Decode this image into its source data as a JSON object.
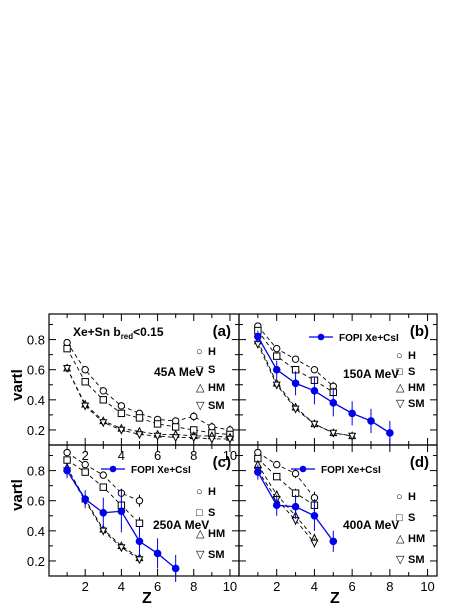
{
  "figure": {
    "ylabel": "vartl",
    "xlabel": "Z"
  },
  "chart_data": [
    {
      "type": "line",
      "panel_label": "(a)",
      "energy_label": "45A MeV",
      "system_label": "Xe+Sn b",
      "system_sub": "red",
      "system_cut": "<0.15",
      "xlim": [
        0,
        10.5
      ],
      "ylim": [
        0.1,
        0.97
      ],
      "x_ticks": [
        "2",
        "4",
        "6",
        "8",
        "10"
      ],
      "y_ticks": [
        "0.2",
        "0.4",
        "0.6",
        "0.8"
      ],
      "legend": [
        {
          "glyph": "○",
          "text": "H"
        },
        {
          "glyph": "□",
          "text": "S"
        },
        {
          "glyph": "△",
          "text": "HM"
        },
        {
          "glyph": "▽",
          "text": "SM"
        }
      ],
      "series": [
        {
          "marker": "circle",
          "style": "dashed",
          "color": "#000000",
          "x": [
            1,
            2,
            3,
            4,
            5,
            6,
            7,
            8,
            9,
            10
          ],
          "y": [
            0.78,
            0.6,
            0.46,
            0.36,
            0.31,
            0.27,
            0.26,
            0.29,
            0.22,
            0.2
          ],
          "err": [
            0.01,
            0.01,
            0.01,
            0.015,
            0.015,
            0.02,
            0.02,
            0.03,
            0.03,
            0.03
          ]
        },
        {
          "marker": "square",
          "style": "dashed",
          "color": "#000000",
          "x": [
            1,
            2,
            3,
            4,
            5,
            6,
            7,
            8,
            9,
            10
          ],
          "y": [
            0.74,
            0.52,
            0.4,
            0.31,
            0.28,
            0.24,
            0.22,
            0.2,
            0.18,
            0.17
          ],
          "err": [
            0.01,
            0.01,
            0.01,
            0.015,
            0.015,
            0.02,
            0.02,
            0.02,
            0.02,
            0.02
          ]
        },
        {
          "marker": "triangle-up",
          "style": "dashed",
          "color": "#000000",
          "x": [
            1,
            2,
            3,
            4,
            5,
            6,
            7,
            8,
            9,
            10
          ],
          "y": [
            0.61,
            0.37,
            0.26,
            0.21,
            0.19,
            0.17,
            0.17,
            0.16,
            0.16,
            0.15
          ],
          "err": [
            0.01,
            0.01,
            0.01,
            0.01,
            0.01,
            0.01,
            0.01,
            0.01,
            0.01,
            0.01
          ]
        },
        {
          "marker": "triangle-down",
          "style": "dashed",
          "color": "#000000",
          "x": [
            1,
            2,
            3,
            4,
            5,
            6,
            7,
            8,
            9,
            10
          ],
          "y": [
            0.61,
            0.36,
            0.25,
            0.2,
            0.17,
            0.16,
            0.15,
            0.15,
            0.14,
            0.14
          ],
          "err": [
            0.01,
            0.01,
            0.01,
            0.01,
            0.01,
            0.01,
            0.01,
            0.01,
            0.01,
            0.01
          ]
        }
      ]
    },
    {
      "type": "line",
      "panel_label": "(b)",
      "energy_label": "150A MeV",
      "fopi_label": "FOPI Xe+CsI",
      "xlim": [
        0,
        10.5
      ],
      "ylim": [
        0.1,
        0.97
      ],
      "x_ticks": [],
      "y_ticks": [],
      "legend": [
        {
          "glyph": "○",
          "text": "H"
        },
        {
          "glyph": "□",
          "text": "S"
        },
        {
          "glyph": "△",
          "text": "HM"
        },
        {
          "glyph": "▽",
          "text": "SM"
        }
      ],
      "series": [
        {
          "marker": "circle",
          "style": "dashed",
          "color": "#000000",
          "x": [
            1,
            2,
            3,
            4,
            5
          ],
          "y": [
            0.89,
            0.74,
            0.67,
            0.6,
            0.49
          ],
          "err": [
            0.01,
            0.01,
            0.015,
            0.02,
            0.03
          ]
        },
        {
          "marker": "square",
          "style": "dashed",
          "color": "#000000",
          "x": [
            1,
            2,
            3,
            4,
            5
          ],
          "y": [
            0.86,
            0.69,
            0.6,
            0.53,
            0.45
          ],
          "err": [
            0.01,
            0.01,
            0.015,
            0.02,
            0.03
          ]
        },
        {
          "marker": "triangle-up",
          "style": "dashed",
          "color": "#000000",
          "x": [
            1,
            2,
            3,
            4,
            5,
            6
          ],
          "y": [
            0.79,
            0.51,
            0.35,
            0.24,
            0.18,
            0.16
          ],
          "err": [
            0.01,
            0.01,
            0.01,
            0.01,
            0.01,
            0.01
          ]
        },
        {
          "marker": "triangle-down",
          "style": "dashed",
          "color": "#000000",
          "x": [
            1,
            2,
            3,
            4,
            5,
            6
          ],
          "y": [
            0.77,
            0.5,
            0.34,
            0.24,
            0.18,
            0.16
          ],
          "err": [
            0.01,
            0.01,
            0.01,
            0.01,
            0.01,
            0.01
          ]
        },
        {
          "marker": "filled-circle",
          "style": "solid",
          "color": "#0000ee",
          "x": [
            1,
            2,
            3,
            4,
            5,
            6,
            7,
            8
          ],
          "y": [
            0.82,
            0.6,
            0.51,
            0.46,
            0.38,
            0.31,
            0.26,
            0.18
          ],
          "err": [
            0.04,
            0.06,
            0.08,
            0.09,
            0.09,
            0.08,
            0.08,
            0.08
          ]
        }
      ]
    },
    {
      "type": "line",
      "panel_label": "(c)",
      "energy_label": "250A MeV",
      "fopi_label": "FOPI Xe+CsI",
      "xlim": [
        0,
        10.5
      ],
      "ylim": [
        0.1,
        0.97
      ],
      "x_ticks": [
        "2",
        "4",
        "6",
        "8",
        "10"
      ],
      "y_ticks": [
        "0.2",
        "0.4",
        "0.6",
        "0.8"
      ],
      "legend": [
        {
          "glyph": "○",
          "text": "H"
        },
        {
          "glyph": "□",
          "text": "S"
        },
        {
          "glyph": "△",
          "text": "HM"
        },
        {
          "glyph": "▽",
          "text": "SM"
        }
      ],
      "series": [
        {
          "marker": "circle",
          "style": "dashed",
          "color": "#000000",
          "x": [
            1,
            2,
            3,
            4,
            5
          ],
          "y": [
            0.92,
            0.84,
            0.77,
            0.65,
            0.6
          ],
          "err": [
            0.01,
            0.015,
            0.02,
            0.03,
            0.04
          ]
        },
        {
          "marker": "square",
          "style": "dashed",
          "color": "#000000",
          "x": [
            1,
            2,
            3,
            4,
            5
          ],
          "y": [
            0.87,
            0.79,
            0.69,
            0.57,
            0.45
          ],
          "err": [
            0.01,
            0.015,
            0.02,
            0.03,
            0.04
          ]
        },
        {
          "marker": "triangle-up",
          "style": "dashed",
          "color": "#000000",
          "x": [
            1,
            2,
            3,
            4,
            5
          ],
          "y": [
            0.82,
            0.61,
            0.41,
            0.3,
            0.22
          ],
          "err": [
            0.01,
            0.01,
            0.015,
            0.02,
            0.02
          ]
        },
        {
          "marker": "triangle-down",
          "style": "dashed",
          "color": "#000000",
          "x": [
            1,
            2,
            3,
            4,
            5
          ],
          "y": [
            0.8,
            0.6,
            0.4,
            0.29,
            0.21
          ],
          "err": [
            0.01,
            0.01,
            0.015,
            0.02,
            0.02
          ]
        },
        {
          "marker": "filled-circle",
          "style": "solid",
          "color": "#0000ee",
          "x": [
            1,
            2,
            3,
            4,
            5,
            6,
            7
          ],
          "y": [
            0.8,
            0.61,
            0.52,
            0.53,
            0.33,
            0.25,
            0.15
          ],
          "err": [
            0.05,
            0.06,
            0.1,
            0.14,
            0.1,
            0.1,
            0.09
          ]
        }
      ]
    },
    {
      "type": "line",
      "panel_label": "(d)",
      "energy_label": "400A MeV",
      "fopi_label": "FOPI Xe+CsI",
      "xlim": [
        0,
        10.5
      ],
      "ylim": [
        0.1,
        0.97
      ],
      "x_ticks": [
        "2",
        "4",
        "6",
        "8",
        "10"
      ],
      "y_ticks": [],
      "legend": [
        {
          "glyph": "○",
          "text": "H"
        },
        {
          "glyph": "□",
          "text": "S"
        },
        {
          "glyph": "△",
          "text": "HM"
        },
        {
          "glyph": "▽",
          "text": "SM"
        }
      ],
      "series": [
        {
          "marker": "circle",
          "style": "dashed",
          "color": "#000000",
          "x": [
            1,
            2,
            3,
            4
          ],
          "y": [
            0.92,
            0.84,
            0.78,
            0.62
          ],
          "err": [
            0.01,
            0.02,
            0.03,
            0.04
          ]
        },
        {
          "marker": "square",
          "style": "dashed",
          "color": "#000000",
          "x": [
            1,
            2,
            3,
            4
          ],
          "y": [
            0.88,
            0.76,
            0.65,
            0.57
          ],
          "err": [
            0.01,
            0.02,
            0.03,
            0.04
          ]
        },
        {
          "marker": "triangle-up",
          "style": "dashed",
          "color": "#000000",
          "x": [
            1,
            2,
            3,
            4
          ],
          "y": [
            0.84,
            0.64,
            0.5,
            0.35
          ],
          "err": [
            0.01,
            0.02,
            0.03,
            0.03
          ]
        },
        {
          "marker": "triangle-down",
          "style": "dashed",
          "color": "#000000",
          "x": [
            1,
            2,
            3,
            4
          ],
          "y": [
            0.8,
            0.61,
            0.47,
            0.32
          ],
          "err": [
            0.01,
            0.02,
            0.03,
            0.03
          ]
        },
        {
          "marker": "filled-circle",
          "style": "solid",
          "color": "#0000ee",
          "x": [
            1,
            2,
            3,
            4,
            5
          ],
          "y": [
            0.79,
            0.57,
            0.56,
            0.5,
            0.33
          ],
          "err": [
            0.05,
            0.07,
            0.08,
            0.1,
            0.07
          ]
        }
      ]
    }
  ]
}
